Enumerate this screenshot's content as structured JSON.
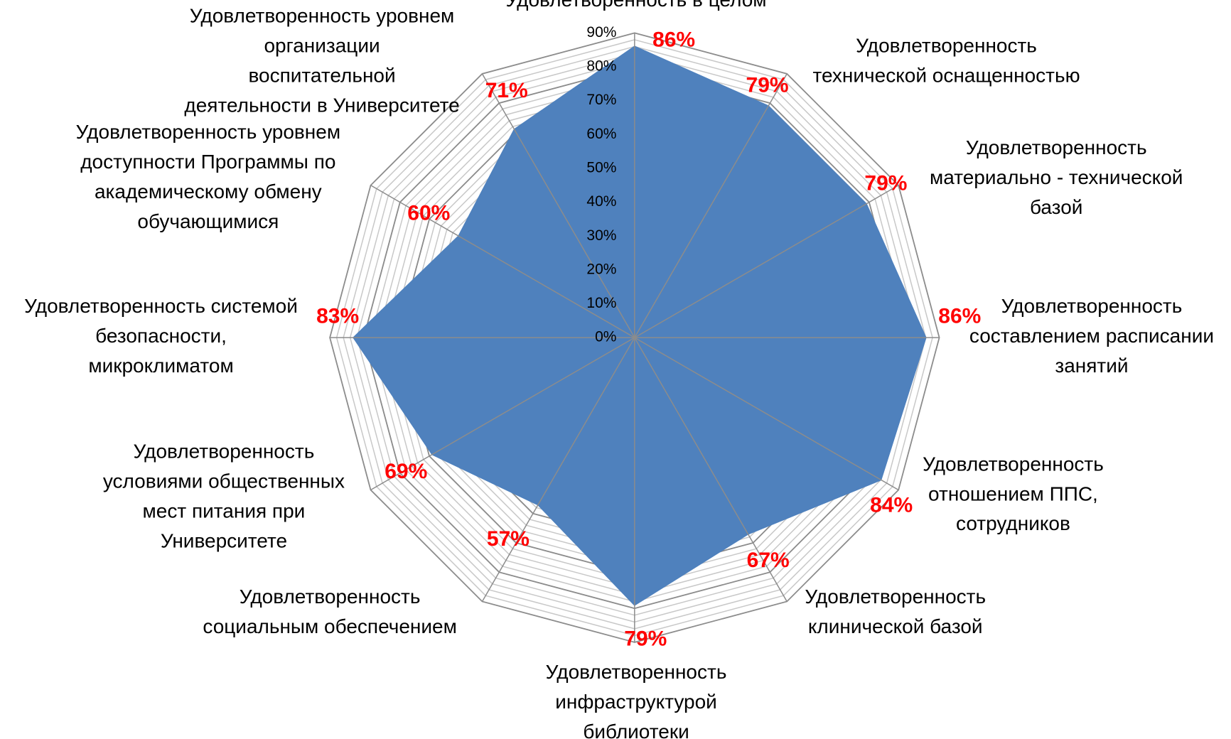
{
  "chart_data": {
    "type": "radar",
    "categories": [
      "Удовлетворенность в целом",
      "Удовлетворенность\nтехнической оснащенностью",
      "Удовлетворенность\nматериально - технической\nбазой",
      "Удовлетворенность\nсоставлением расписании\nзанятий",
      "Удовлетворенность\nотношением ППС,\nсотрудников",
      "Удовлетворенность\nклинической базой",
      "Удовлетворенность\nинфраструктурой\nбиблиотеки",
      "Удовлетворенность\nсоциальным обеспечением",
      "Удовлетворенность\nусловиями общественных\nмест питания при\nУниверситете",
      "Удовлетворенность системой\nбезопасности,\nмикроклиматом",
      "Удовлетворенность уровнем\nдоступности Программы по\nакадемическому обмену\nобучающимися",
      "Удовлетворенность уровнем\nорганизации\nвоспитательной\nдеятельности в Университете"
    ],
    "values": [
      86,
      79,
      79,
      86,
      84,
      67,
      79,
      57,
      69,
      83,
      60,
      71
    ],
    "value_labels": [
      "86%",
      "79%",
      "79%",
      "86%",
      "84%",
      "67%",
      "79%",
      "57%",
      "69%",
      "83%",
      "60%",
      "71%"
    ],
    "color": "#4f81bd",
    "value_label_color": "#ff0000",
    "ylim": [
      0,
      90
    ],
    "yticks": [
      {
        "value": 0,
        "label": "0%"
      },
      {
        "value": 10,
        "label": "10%"
      },
      {
        "value": 20,
        "label": "20%"
      },
      {
        "value": 30,
        "label": "30%"
      },
      {
        "value": 40,
        "label": "40%"
      },
      {
        "value": 50,
        "label": "50%"
      },
      {
        "value": 60,
        "label": "60%"
      },
      {
        "value": 70,
        "label": "70%"
      },
      {
        "value": 80,
        "label": "80%"
      },
      {
        "value": 90,
        "label": "90%"
      }
    ],
    "grid": true
  }
}
